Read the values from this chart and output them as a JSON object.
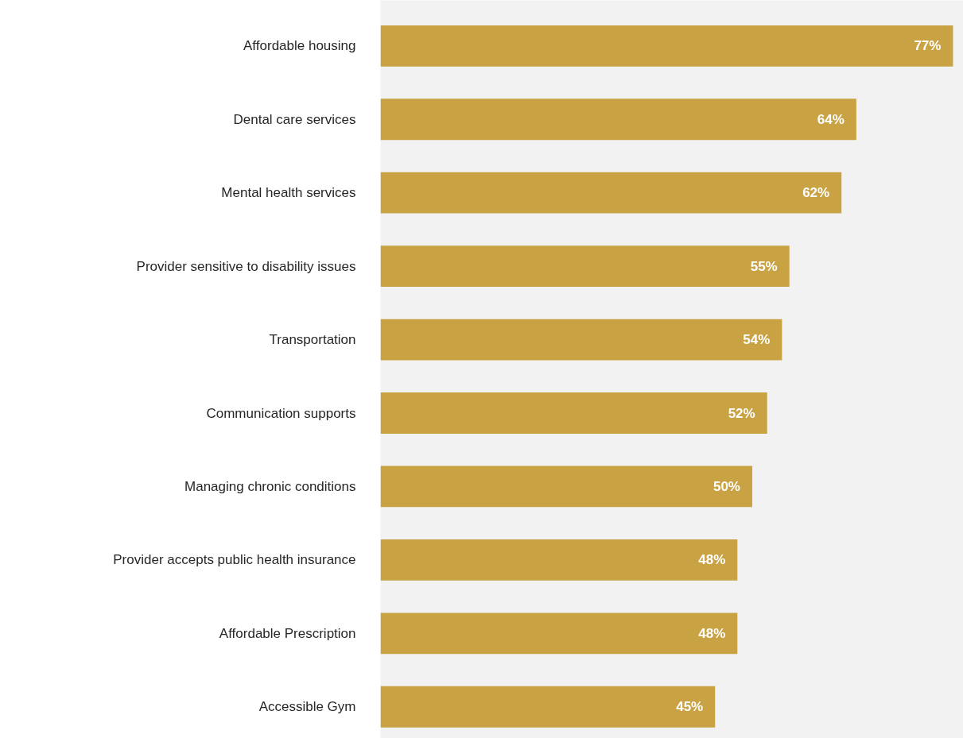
{
  "chart_data": {
    "type": "bar",
    "orientation": "horizontal",
    "categories": [
      "Affordable housing",
      "Dental care services",
      "Mental health services",
      "Provider sensitive to disability issues",
      "Transportation",
      "Communication supports",
      "Managing chronic conditions",
      "Provider accepts public health insurance",
      "Affordable Prescription",
      "Accessible Gym"
    ],
    "values": [
      77,
      64,
      62,
      55,
      54,
      52,
      50,
      48,
      48,
      45
    ],
    "value_labels": [
      "77%",
      "64%",
      "62%",
      "55%",
      "54%",
      "52%",
      "50%",
      "48%",
      "48%",
      "45%"
    ],
    "color": "#c9a244",
    "xlim": [
      0,
      78.4
    ],
    "tick_labels": "y",
    "grid": false
  }
}
